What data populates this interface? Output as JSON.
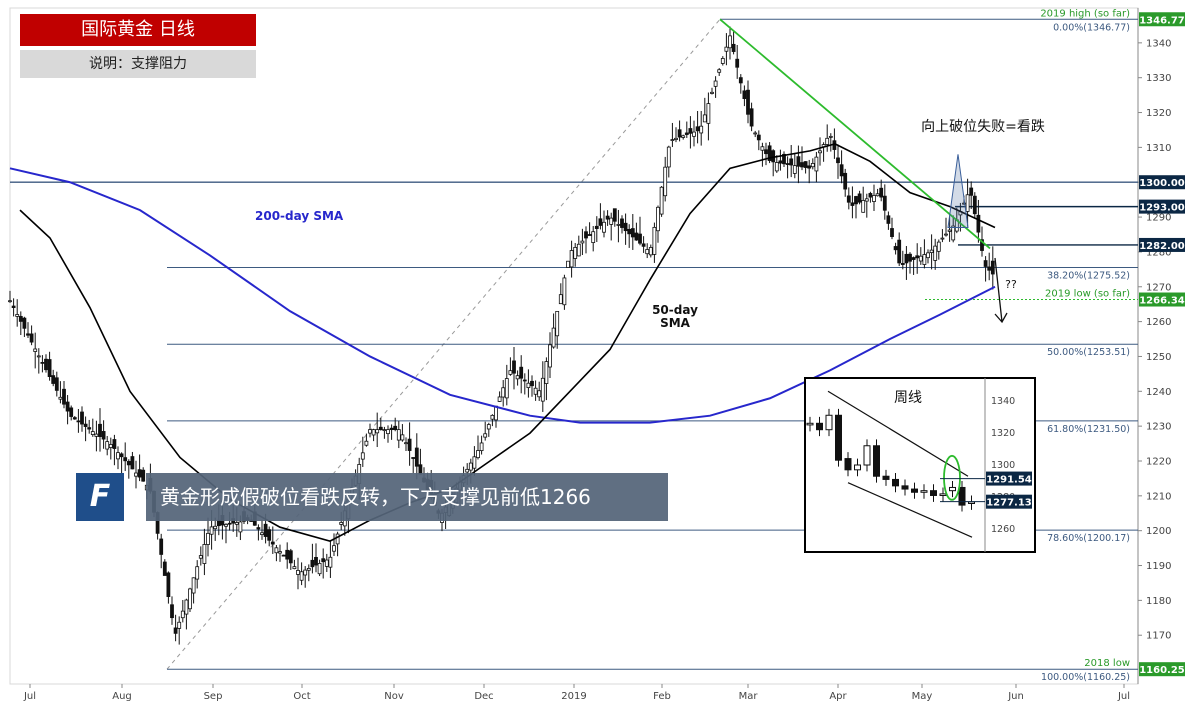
{
  "header": {
    "title": "国际黄金 日线",
    "subtitle": "说明：支撑阻力"
  },
  "banner": {
    "text": "黄金形成假破位看跌反转，下方支撑见前低1266",
    "logo_letter": "F"
  },
  "annotations": {
    "sma200": "200-day SMA",
    "sma50_l1": "50-day",
    "sma50_l2": "SMA",
    "breakout": "向上破位失败=看跌",
    "question": "??"
  },
  "colors": {
    "price_tag": "#0b2744",
    "fib": "#3d5a80",
    "sma200": "#2727cc",
    "sma50": "#000000",
    "trend": "#2dbb2d",
    "candle_up": "#ffffff",
    "candle_down": "#111111",
    "green_label": "#2a9a2a"
  },
  "chart_data": {
    "type": "candlestick",
    "x_ticks": [
      "Jul",
      "Aug",
      "Sep",
      "Oct",
      "Nov",
      "Dec",
      "2019",
      "Feb",
      "Mar",
      "Apr",
      "May",
      "Jun",
      "Jul"
    ],
    "y_ticks": [
      1170,
      1180,
      1190,
      1200,
      1210,
      1220,
      1230,
      1240,
      1250,
      1260,
      1270,
      1280,
      1290,
      1300,
      1310,
      1320,
      1330,
      1340
    ],
    "ylim": [
      1156,
      1350
    ],
    "price_tags": [
      {
        "label": "1346.77",
        "value": 1346.77,
        "style": "green"
      },
      {
        "label": "1300.00",
        "value": 1300.0,
        "style": "dark"
      },
      {
        "label": "1293.00",
        "value": 1293.0,
        "style": "dark"
      },
      {
        "label": "1282.00",
        "value": 1282.0,
        "style": "dark"
      },
      {
        "label": "1266.34",
        "value": 1266.34,
        "style": "green"
      },
      {
        "label": "1160.25",
        "value": 1160.25,
        "style": "green"
      }
    ],
    "fib_levels": [
      {
        "label": "0.00%(1346.77)",
        "value": 1346.77
      },
      {
        "label": "38.20%(1275.52)",
        "value": 1275.52
      },
      {
        "label": "50.00%(1253.51)",
        "value": 1253.51
      },
      {
        "label": "61.80%(1231.50)",
        "value": 1231.5
      },
      {
        "label": "78.60%(1200.17)",
        "value": 1200.17
      },
      {
        "label": "100.00%(1160.25)",
        "value": 1160.25
      }
    ],
    "level_labels": [
      {
        "label": "2019 high (so far)",
        "value": 1346.77
      },
      {
        "label": "2019 low (so far)",
        "value": 1266.34
      },
      {
        "label": "2018 low",
        "value": 1160.25
      }
    ],
    "sma200": [
      [
        0,
        1304
      ],
      [
        60,
        1300
      ],
      [
        130,
        1292
      ],
      [
        200,
        1279
      ],
      [
        280,
        1263
      ],
      [
        360,
        1250
      ],
      [
        440,
        1239
      ],
      [
        520,
        1233
      ],
      [
        570,
        1231
      ],
      [
        640,
        1231
      ],
      [
        700,
        1233
      ],
      [
        760,
        1238
      ],
      [
        820,
        1246
      ],
      [
        880,
        1255
      ],
      [
        930,
        1262
      ],
      [
        985,
        1270
      ]
    ],
    "sma50": [
      [
        10,
        1292
      ],
      [
        40,
        1284
      ],
      [
        80,
        1264
      ],
      [
        120,
        1240
      ],
      [
        170,
        1221
      ],
      [
        220,
        1209
      ],
      [
        270,
        1201
      ],
      [
        320,
        1197
      ],
      [
        360,
        1203
      ],
      [
        400,
        1208
      ],
      [
        440,
        1212
      ],
      [
        480,
        1220
      ],
      [
        520,
        1228
      ],
      [
        560,
        1240
      ],
      [
        600,
        1252
      ],
      [
        640,
        1272
      ],
      [
        680,
        1291
      ],
      [
        720,
        1304
      ],
      [
        760,
        1307
      ],
      [
        800,
        1309
      ],
      [
        825,
        1311
      ],
      [
        860,
        1306
      ],
      [
        900,
        1297
      ],
      [
        940,
        1293
      ],
      [
        985,
        1287
      ]
    ],
    "ohlc_note": "approximate daily price path read from chart (day index, close)",
    "path": [
      [
        0,
        1266
      ],
      [
        20,
        1255
      ],
      [
        60,
        1233
      ],
      [
        100,
        1225
      ],
      [
        140,
        1212
      ],
      [
        165,
        1170
      ],
      [
        200,
        1201
      ],
      [
        240,
        1203
      ],
      [
        290,
        1188
      ],
      [
        320,
        1192
      ],
      [
        360,
        1229
      ],
      [
        390,
        1229
      ],
      [
        430,
        1204
      ],
      [
        470,
        1224
      ],
      [
        500,
        1246
      ],
      [
        530,
        1240
      ],
      [
        560,
        1280
      ],
      [
        600,
        1290
      ],
      [
        640,
        1280
      ],
      [
        660,
        1312
      ],
      [
        690,
        1315
      ],
      [
        720,
        1342
      ],
      [
        740,
        1317
      ],
      [
        760,
        1306
      ],
      [
        800,
        1304
      ],
      [
        820,
        1314
      ],
      [
        840,
        1293
      ],
      [
        870,
        1297
      ],
      [
        890,
        1276
      ],
      [
        920,
        1280
      ],
      [
        945,
        1288
      ],
      [
        960,
        1298
      ],
      [
        975,
        1276
      ],
      [
        985,
        1273
      ]
    ],
    "inset": {
      "title": "周线",
      "y_ticks": [
        1260,
        1280,
        1300,
        1320,
        1340
      ],
      "ylim": [
        1252,
        1348
      ],
      "price_tags": [
        {
          "label": "1291.54",
          "value": 1291.54
        },
        {
          "label": "1277.13",
          "value": 1277.13
        }
      ],
      "weekly": [
        [
          1325,
          1326
        ],
        [
          1326,
          1322
        ],
        [
          1322,
          1331
        ],
        [
          1331,
          1303
        ],
        [
          1304,
          1297
        ],
        [
          1297,
          1300
        ],
        [
          1300,
          1312
        ],
        [
          1312,
          1293
        ],
        [
          1293,
          1291
        ],
        [
          1291,
          1287
        ],
        [
          1287,
          1285
        ],
        [
          1285,
          1283
        ],
        [
          1283,
          1284
        ],
        [
          1284,
          1281
        ],
        [
          1281,
          1282
        ],
        [
          1284,
          1286
        ],
        [
          1286,
          1275
        ],
        [
          1276,
          1277
        ]
      ]
    }
  }
}
